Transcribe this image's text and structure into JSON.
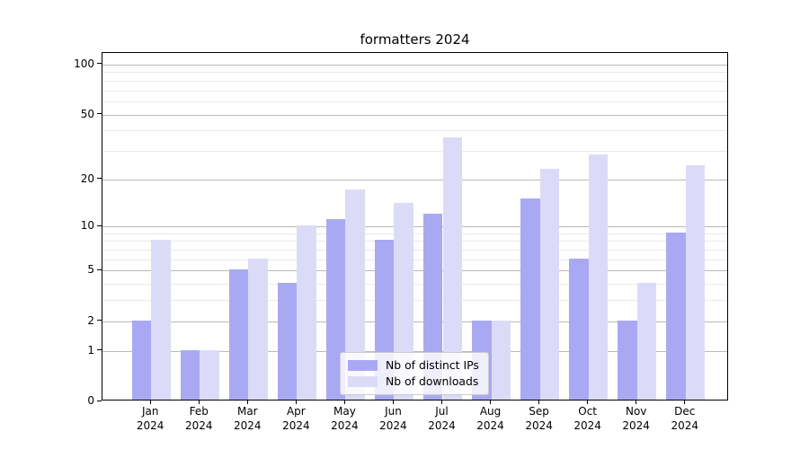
{
  "title": "formatters 2024",
  "chart_data": {
    "type": "bar",
    "title": "formatters 2024",
    "categories": [
      "Jan",
      "Feb",
      "Mar",
      "Apr",
      "May",
      "Jun",
      "Jul",
      "Aug",
      "Sep",
      "Oct",
      "Nov",
      "Dec"
    ],
    "category_year": "2024",
    "series": [
      {
        "name": "Nb of distinct IPs",
        "color": "#a9a9f3",
        "values": [
          2,
          1,
          5,
          4,
          11,
          8,
          12,
          2,
          15,
          6,
          2,
          9
        ]
      },
      {
        "name": "Nb of downloads",
        "color": "#dbdbf8",
        "values": [
          8,
          1,
          6,
          10,
          17,
          14,
          36,
          2,
          23,
          28,
          4,
          24
        ]
      }
    ],
    "xlabel": "",
    "ylabel": "",
    "yscale": "log1p",
    "ylim": [
      0,
      118
    ],
    "yticks": [
      0,
      1,
      2,
      5,
      10,
      20,
      50,
      100
    ],
    "minor_yticks": [
      3,
      4,
      6,
      7,
      8,
      9,
      30,
      40,
      60,
      70,
      80,
      90
    ],
    "grid": "horizontal",
    "legend_position": "lower center",
    "colors": {
      "major_grid": "#b9b9b9",
      "minor_grid": "#e9e9e9",
      "spine": "#000000",
      "legend_border": "#cccccc"
    }
  }
}
